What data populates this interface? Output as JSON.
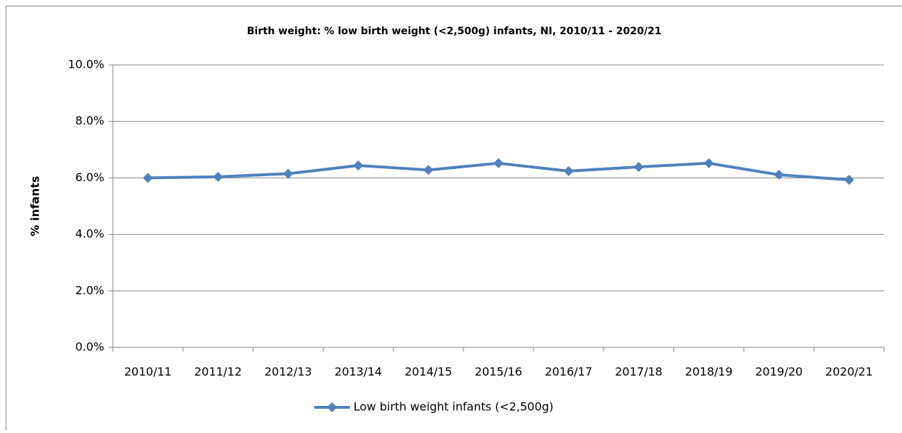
{
  "chart_data": {
    "type": "line",
    "title": "Birth weight: % low birth weight (<2,500g) infants, NI, 2010/11 - 2020/21",
    "y_label": "% infants",
    "categories": [
      "2010/11",
      "2011/12",
      "2012/13",
      "2013/14",
      "2014/15",
      "2015/16",
      "2016/17",
      "2017/18",
      "2018/19",
      "2019/20",
      "2020/21"
    ],
    "series": [
      {
        "name": "Low birth weight infants (<2,500g)",
        "color": "#4f81bd",
        "values": [
          6.0,
          6.04,
          6.15,
          6.44,
          6.28,
          6.52,
          6.24,
          6.39,
          6.52,
          6.11,
          5.93
        ]
      }
    ],
    "ylim": [
      0,
      10
    ],
    "yticks": [
      {
        "value": 0,
        "label": "0.0%"
      },
      {
        "value": 2,
        "label": "2.0%"
      },
      {
        "value": 4,
        "label": "4.0%"
      },
      {
        "value": 6,
        "label": "6.0%"
      },
      {
        "value": 8,
        "label": "8.0%"
      },
      {
        "value": 10,
        "label": "10.0%"
      }
    ],
    "grid": true,
    "legend": "bottom"
  }
}
